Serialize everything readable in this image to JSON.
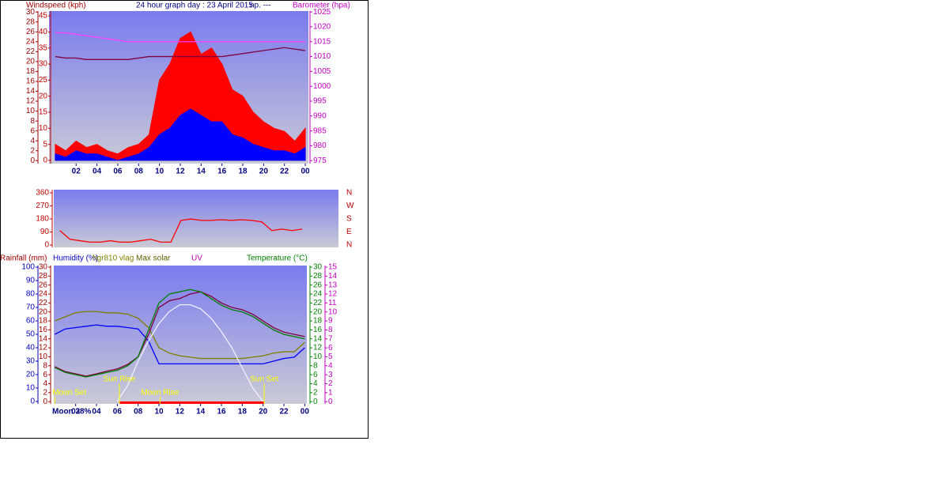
{
  "chart_data": [
    {
      "type": "line",
      "title": "24 hour graph day : 23 April 2015",
      "subtitle": "np. ---",
      "x": [
        0,
        1,
        2,
        3,
        4,
        5,
        6,
        7,
        8,
        9,
        10,
        11,
        12,
        13,
        14,
        15,
        16,
        17,
        18,
        19,
        20,
        21,
        22,
        23,
        24
      ],
      "xlim": [
        -0.6,
        24.3
      ],
      "xticks": [
        {
          "value": 2,
          "label": "02"
        },
        {
          "value": 4,
          "label": "04"
        },
        {
          "value": 6,
          "label": "06"
        },
        {
          "value": 8,
          "label": "08"
        },
        10,
        12,
        14,
        16,
        18,
        20,
        22,
        {
          "value": 24,
          "label": "00"
        }
      ],
      "axes": [
        {
          "label": "Windspeed (kph)",
          "lim": [
            -0.6,
            30.2
          ],
          "ticks": [
            0,
            2,
            4,
            6,
            8,
            10,
            12,
            14,
            16,
            18,
            20,
            22,
            24,
            26,
            28,
            30
          ],
          "color": "#a00000"
        },
        {
          "lim": [
            -1,
            46.5
          ],
          "ticks": [
            0,
            5,
            10,
            15,
            20,
            25,
            30,
            35,
            40,
            45
          ],
          "color": "#c00000"
        },
        {
          "label": "Barometer (hpa)",
          "lim": [
            974,
            1025.3
          ],
          "ticks": [
            975,
            980,
            985,
            990,
            995,
            1000,
            1005,
            1010,
            1015,
            1020,
            1025
          ],
          "color": "#c000c0"
        }
      ],
      "series": [
        {
          "color": "#ff0000",
          "axis": 1,
          "style": "area",
          "values": [
            5,
            3,
            6,
            4,
            5,
            3,
            2,
            4,
            5,
            8,
            25,
            30,
            38,
            40,
            33,
            35,
            30,
            22,
            20,
            15,
            12,
            10,
            9,
            6,
            10
          ]
        },
        {
          "color": "#0000ff",
          "axis": 1,
          "style": "area",
          "values": [
            2,
            1,
            3,
            2,
            2,
            1,
            0,
            1,
            2,
            4,
            8,
            10,
            14,
            16,
            14,
            12,
            12,
            8,
            7,
            5,
            4,
            3,
            3,
            2,
            4
          ]
        },
        {
          "color": "#ff40ff",
          "axis": 2,
          "values": [
            1018,
            1018,
            1017.5,
            1017,
            1016.5,
            1016,
            1015.5,
            1015,
            1015,
            1015,
            1015,
            1015,
            1015,
            1015,
            1015,
            1015,
            1015,
            1015,
            1015,
            1015,
            1015,
            1015,
            1015,
            1015,
            1015
          ]
        },
        {
          "color": "#800040",
          "axis": 2,
          "values": [
            1010,
            1009.5,
            1009.5,
            1009,
            1009,
            1009,
            1009,
            1009,
            1009.5,
            1010,
            1010,
            1010,
            1010,
            1010,
            1010,
            1010,
            1010,
            1010.5,
            1011,
            1011.5,
            1012,
            1012.5,
            1013,
            1012.5,
            1012
          ]
        }
      ]
    },
    {
      "type": "line",
      "x": [
        0,
        1,
        2,
        3,
        4,
        5,
        6,
        7,
        8,
        9,
        10,
        11,
        12,
        13,
        14,
        15,
        16,
        17,
        18,
        19,
        20,
        21,
        22,
        23,
        24
      ],
      "xlim": [
        -0.6,
        27.6
      ],
      "axes": [
        {
          "lim": [
            -16,
            382
          ],
          "ticks": [
            0,
            90,
            180,
            270,
            360
          ],
          "color": "#c00000"
        },
        {
          "lim": [
            -16,
            382
          ],
          "ticks": [
            {
              "value": 360,
              "label": "N"
            },
            {
              "value": 270,
              "label": "W"
            },
            {
              "value": 180,
              "label": "S"
            },
            {
              "value": 90,
              "label": "E"
            },
            {
              "value": 0,
              "label": "N"
            }
          ],
          "color": "#c00000"
        }
      ],
      "series": [
        {
          "color": "#ff0000",
          "axis": 0,
          "values": [
            100,
            40,
            30,
            20,
            20,
            30,
            20,
            20,
            30,
            40,
            20,
            20,
            170,
            180,
            170,
            170,
            175,
            170,
            175,
            170,
            160,
            100,
            110,
            100,
            110
          ]
        }
      ]
    },
    {
      "type": "line",
      "x": [
        0,
        1,
        2,
        3,
        4,
        5,
        6,
        7,
        8,
        9,
        10,
        11,
        12,
        13,
        14,
        15,
        16,
        17,
        18,
        19,
        20,
        21,
        22,
        23,
        24
      ],
      "xlim": [
        -0.1,
        24.2
      ],
      "xlabel": "Moon 38%",
      "xticks": [
        {
          "value": 2,
          "label": "02"
        },
        {
          "value": 4,
          "label": "04"
        },
        {
          "value": 6,
          "label": "06"
        },
        {
          "value": 8,
          "label": "08"
        },
        10,
        12,
        14,
        16,
        18,
        20,
        22,
        {
          "value": 24,
          "label": "00"
        }
      ],
      "axes": [
        {
          "label": "Humidity (%)",
          "lim": [
            -1.8,
            101.2
          ],
          "ticks": [
            0,
            10,
            20,
            30,
            40,
            50,
            60,
            70,
            80,
            90,
            100
          ],
          "color": "#0000c0"
        },
        {
          "label": "Rainfall (mm)",
          "lim": [
            -0.5,
            30.35
          ],
          "ticks": [
            0,
            2,
            4,
            6,
            8,
            10,
            12,
            14,
            16,
            18,
            20,
            22,
            24,
            26,
            28,
            30
          ],
          "color": "#a00000"
        },
        {
          "label": "Temperature (°C)",
          "lim": [
            -0.5,
            30.35
          ],
          "ticks": [
            0,
            2,
            4,
            6,
            8,
            10,
            12,
            14,
            16,
            18,
            20,
            22,
            24,
            26,
            28,
            30
          ],
          "color": "#008000"
        },
        {
          "label": "UV",
          "lim": [
            -0.25,
            15.18
          ],
          "ticks": [
            0,
            1,
            2,
            3,
            4,
            5,
            6,
            7,
            8,
            9,
            10,
            11,
            12,
            13,
            14,
            15
          ],
          "color": "#c000c0"
        }
      ],
      "series": [
        {
          "color": "#0000ff",
          "axis": 0,
          "values": [
            50,
            54,
            55,
            56,
            57,
            56,
            56,
            55,
            54,
            45,
            28,
            28,
            28,
            28,
            28,
            28,
            28,
            28,
            28,
            28,
            28,
            30,
            32,
            33,
            40
          ]
        },
        {
          "name": "hgr810 vlag",
          "color": "#808000",
          "axis": 0,
          "values": [
            60,
            63,
            66,
            67,
            67,
            66,
            66,
            65,
            62,
            55,
            40,
            36,
            34,
            33,
            32,
            32,
            32,
            32,
            32,
            33,
            34,
            36,
            37,
            37,
            44
          ]
        },
        {
          "name": "Max solar",
          "color": "#f0f0ff",
          "axis": 0,
          "values": [
            null,
            null,
            null,
            null,
            null,
            null,
            0,
            12,
            30,
            45,
            58,
            67,
            72,
            72,
            69,
            62,
            52,
            40,
            25,
            10,
            0,
            null,
            null,
            null,
            null
          ]
        },
        {
          "color": "#800040",
          "axis": 2,
          "values": [
            7.8,
            6.7,
            6.2,
            5.7,
            6.2,
            6.8,
            7.3,
            8.3,
            10,
            15,
            21,
            22.5,
            23,
            24,
            24.5,
            23.5,
            22,
            21,
            20.5,
            19.5,
            18,
            16.5,
            15.5,
            15,
            14.5
          ]
        },
        {
          "color": "#008000",
          "axis": 2,
          "values": [
            7.6,
            6.5,
            6,
            5.5,
            6,
            6.5,
            7,
            8,
            10,
            16,
            22,
            24,
            24.5,
            25,
            24.5,
            23,
            21.5,
            20.5,
            20,
            19,
            17.5,
            16,
            15,
            14.5,
            14
          ]
        }
      ],
      "annotations": [
        {
          "text": "Moon Set",
          "x": 0
        },
        {
          "text": "Sun Rise",
          "x": 6.2
        },
        {
          "text": "Moon Rise",
          "x": 10.1
        },
        {
          "text": "Sun Set",
          "x": 20.1
        }
      ]
    }
  ]
}
